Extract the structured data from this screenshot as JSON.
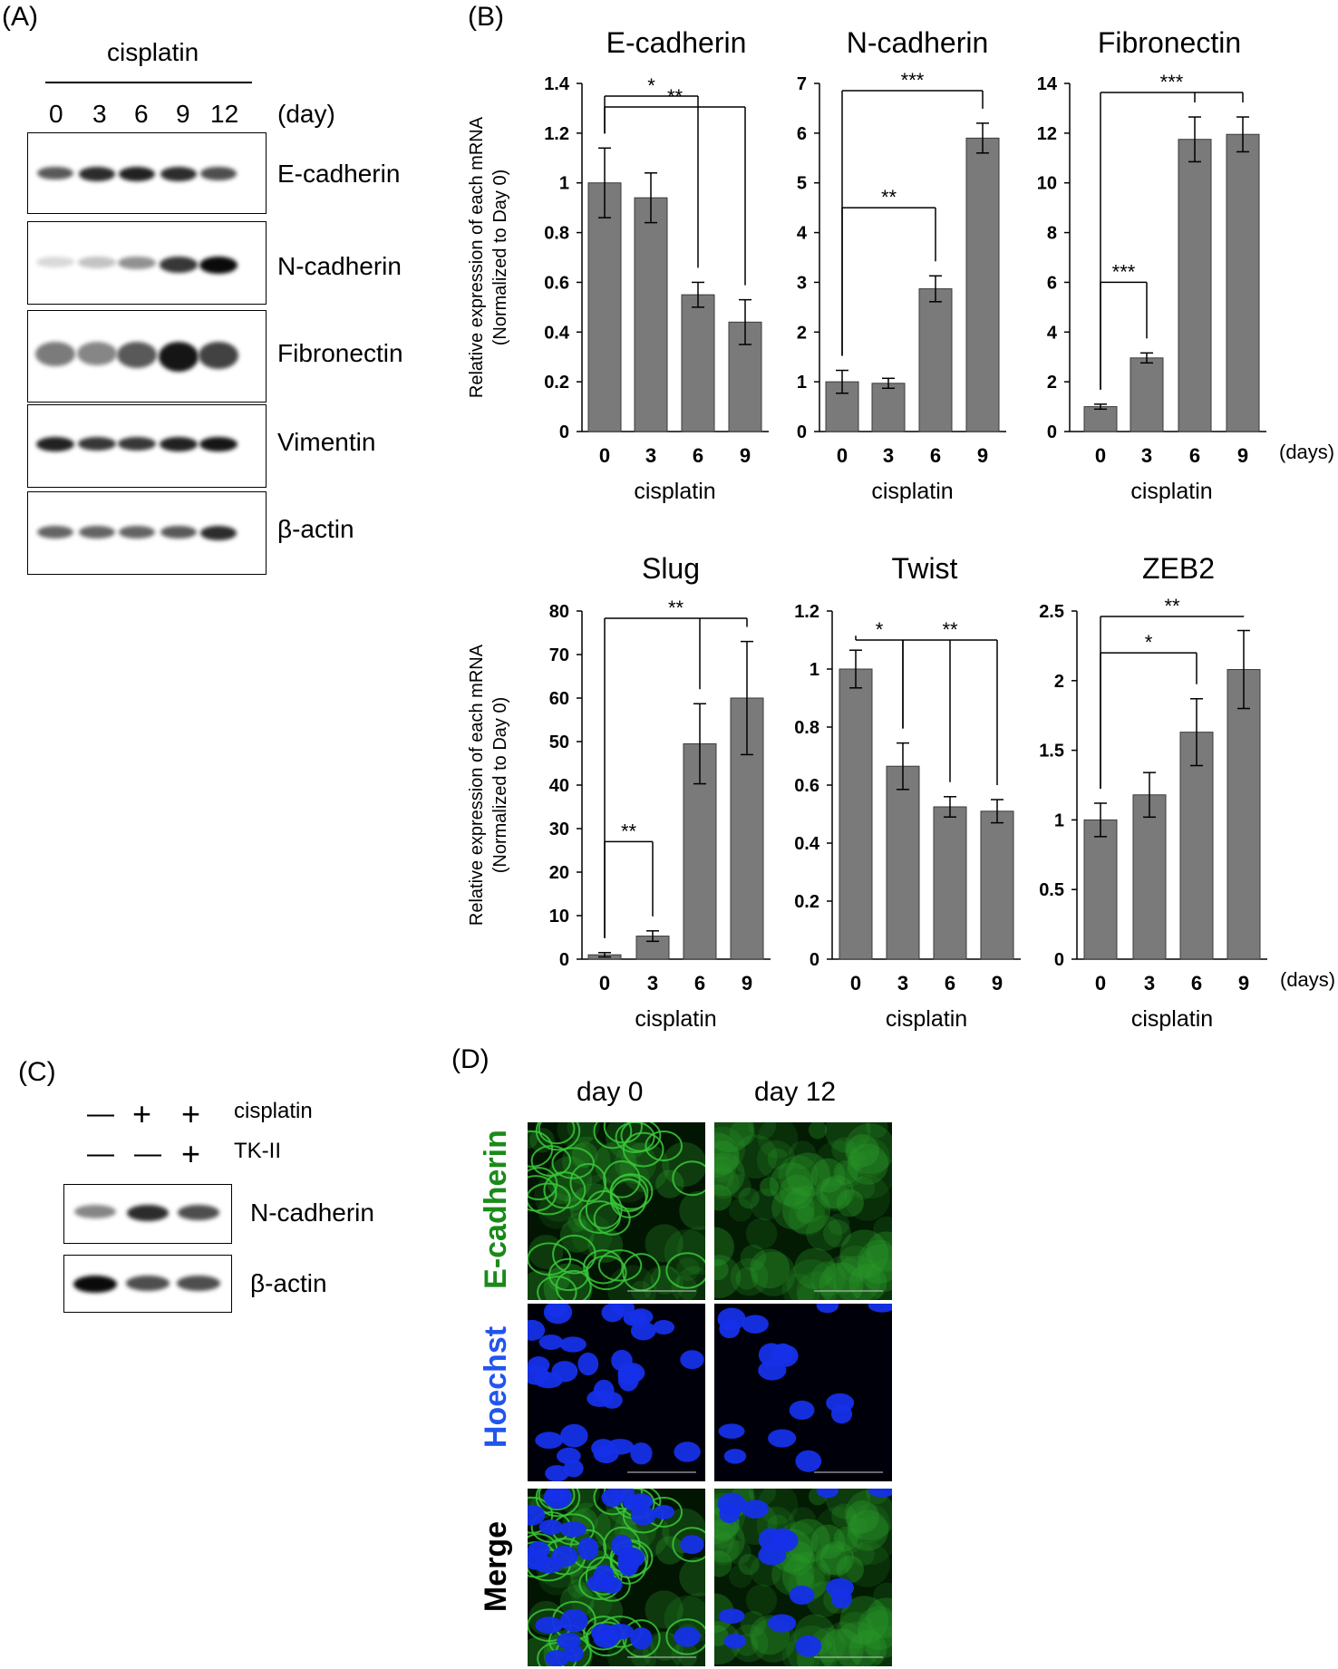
{
  "panel_labels": {
    "A": "(A)",
    "B": "(B)",
    "C": "(C)",
    "D": "(D)"
  },
  "panelA": {
    "treatment": "cisplatin",
    "timepoints": [
      "0",
      "3",
      "6",
      "9",
      "12"
    ],
    "unit": "(day)",
    "blots": [
      {
        "protein": "E-cadherin",
        "intensity": [
          0.65,
          0.85,
          0.9,
          0.85,
          0.7
        ]
      },
      {
        "protein": "N-cadherin",
        "intensity": [
          0.08,
          0.18,
          0.4,
          0.8,
          1.0
        ]
      },
      {
        "protein": "Fibronectin",
        "intensity": [
          0.5,
          0.45,
          0.65,
          0.95,
          0.75
        ]
      },
      {
        "protein": "Vimentin",
        "intensity": [
          0.9,
          0.8,
          0.8,
          0.9,
          0.95
        ]
      },
      {
        "protein": "β-actin",
        "intensity": [
          0.6,
          0.6,
          0.6,
          0.65,
          0.85
        ]
      }
    ]
  },
  "panelC": {
    "rows": [
      {
        "label": "cisplatin",
        "signs": [
          "—",
          "+",
          "+"
        ]
      },
      {
        "label": "TK-II",
        "signs": [
          "—",
          "—",
          "+"
        ]
      }
    ],
    "blots": [
      {
        "protein": "N-cadherin",
        "intensity": [
          0.45,
          0.85,
          0.7
        ]
      },
      {
        "protein": "β-actin",
        "intensity": [
          1.0,
          0.7,
          0.7
        ]
      }
    ]
  },
  "panelD": {
    "columns": [
      "day 0",
      "day 12"
    ],
    "rows": [
      {
        "label": "E-cadherin",
        "color": "#1a8a1a"
      },
      {
        "label": "Hoechst",
        "color": "#2255ee"
      },
      {
        "label": "Merge",
        "color": "#000000"
      }
    ]
  },
  "chart_data": [
    {
      "type": "bar",
      "title": "E-cadherin",
      "ylabel": "Relative expression of each mRNA",
      "ylabel2": "(Normalized to Day 0)",
      "xlabel": "cisplatin",
      "categories": [
        "0",
        "3",
        "6",
        "9"
      ],
      "values": [
        1.0,
        0.94,
        0.55,
        0.44
      ],
      "errors": [
        0.14,
        0.1,
        0.05,
        0.09
      ],
      "ylim": [
        0,
        1.4
      ],
      "ticks": [
        "0",
        "0.2",
        "0.4",
        "0.6",
        "0.8",
        "1",
        "1.2",
        "1.4"
      ],
      "tick_values": [
        0,
        0.2,
        0.4,
        0.6,
        0.8,
        1.0,
        1.2,
        1.4
      ],
      "significance": [
        {
          "from": 0,
          "to": 2,
          "label": "*"
        },
        {
          "from": 0,
          "to": 3,
          "label": "**"
        }
      ]
    },
    {
      "type": "bar",
      "title": "N-cadherin",
      "xlabel": "cisplatin",
      "categories": [
        "0",
        "3",
        "6",
        "9"
      ],
      "values": [
        1.0,
        0.97,
        2.87,
        5.9
      ],
      "errors": [
        0.23,
        0.1,
        0.26,
        0.3
      ],
      "ylim": [
        0,
        7
      ],
      "ticks": [
        "0",
        "1",
        "2",
        "3",
        "4",
        "5",
        "6",
        "7"
      ],
      "tick_values": [
        0,
        1,
        2,
        3,
        4,
        5,
        6,
        7
      ],
      "significance": [
        {
          "from": 0,
          "to": 3,
          "label": "***"
        },
        {
          "from": 0,
          "to": 2,
          "label": "**"
        }
      ]
    },
    {
      "type": "bar",
      "title": "Fibronectin",
      "xlabel": "cisplatin",
      "unit": "(days)",
      "categories": [
        "0",
        "3",
        "6",
        "9"
      ],
      "values": [
        1.0,
        2.96,
        11.75,
        11.95
      ],
      "errors": [
        0.1,
        0.2,
        0.9,
        0.7
      ],
      "ylim": [
        0,
        14
      ],
      "ticks": [
        "0",
        "2",
        "4",
        "6",
        "8",
        "10",
        "12",
        "14"
      ],
      "tick_values": [
        0,
        2,
        4,
        6,
        8,
        10,
        12,
        14
      ],
      "significance": [
        {
          "from": 0,
          "to": 1,
          "label": "***"
        },
        {
          "from": 0,
          "to": 3,
          "label": "***",
          "branch": 2
        }
      ]
    },
    {
      "type": "bar",
      "title": "Slug",
      "ylabel": "Relative expression of each mRNA",
      "ylabel2": "(Normalized to Day 0)",
      "xlabel": "cisplatin",
      "categories": [
        "0",
        "3",
        "6",
        "9"
      ],
      "values": [
        1.0,
        5.3,
        49.5,
        60.0
      ],
      "errors": [
        0.5,
        1.2,
        9.2,
        13.0
      ],
      "ylim": [
        0,
        80
      ],
      "ticks": [
        "0",
        "10",
        "20",
        "30",
        "40",
        "50",
        "60",
        "70",
        "80"
      ],
      "tick_values": [
        0,
        10,
        20,
        30,
        40,
        50,
        60,
        70,
        80
      ],
      "significance": [
        {
          "from": 0,
          "to": 3,
          "label": "**",
          "branch": 2
        },
        {
          "from": 0,
          "to": 1,
          "label": "**"
        }
      ]
    },
    {
      "type": "bar",
      "title": "Twist",
      "xlabel": "cisplatin",
      "categories": [
        "0",
        "3",
        "6",
        "9"
      ],
      "values": [
        1.0,
        0.665,
        0.525,
        0.51
      ],
      "errors": [
        0.065,
        0.08,
        0.035,
        0.04
      ],
      "ylim": [
        0,
        1.2
      ],
      "ticks": [
        "0",
        "0.2",
        "0.4",
        "0.6",
        "0.8",
        "1",
        "1.2"
      ],
      "tick_values": [
        0,
        0.2,
        0.4,
        0.6,
        0.8,
        1.0,
        1.2
      ],
      "significance": [
        {
          "from": 0,
          "to": 1,
          "label": "*"
        },
        {
          "from": 1,
          "to": 3,
          "label": "**",
          "branch": 2
        }
      ]
    },
    {
      "type": "bar",
      "title": "ZEB2",
      "xlabel": "cisplatin",
      "unit": "(days)",
      "categories": [
        "0",
        "3",
        "6",
        "9"
      ],
      "values": [
        1.0,
        1.18,
        1.63,
        2.08
      ],
      "errors": [
        0.12,
        0.16,
        0.24,
        0.28
      ],
      "ylim": [
        0,
        2.5
      ],
      "ticks": [
        "0",
        "0.5",
        "1",
        "1.5",
        "2",
        "2.5"
      ],
      "tick_values": [
        0,
        0.5,
        1.0,
        1.5,
        2.0,
        2.5
      ],
      "significance": [
        {
          "from": 0,
          "to": 3,
          "label": "**"
        },
        {
          "from": 0,
          "to": 2,
          "label": "*"
        }
      ]
    }
  ]
}
